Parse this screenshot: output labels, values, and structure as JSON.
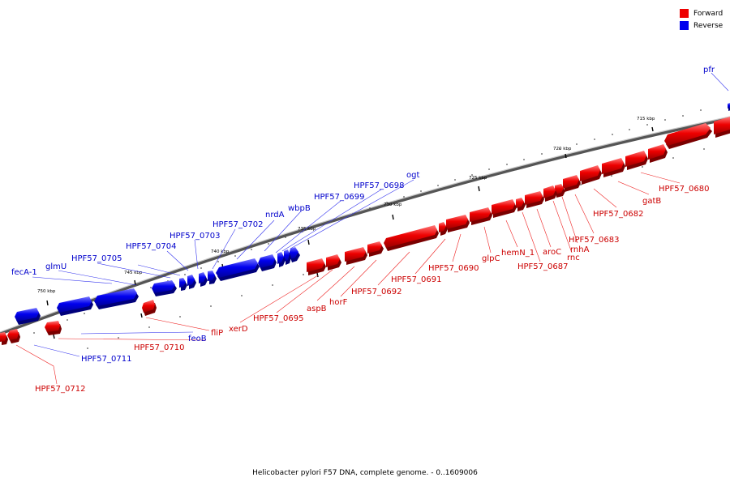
{
  "caption": "Helicobacter pylori F57 DNA, complete genome. - 0..1609006",
  "legend": [
    {
      "label": "Forward",
      "color": "#ee0000"
    },
    {
      "label": "Reverse",
      "color": "#0000ee"
    }
  ],
  "colors": {
    "forward": "#ee0000",
    "reverse": "#0000ee",
    "backbone": "#888888"
  },
  "scale": {
    "ticks": [
      "715 kbp",
      "720 kbp",
      "725 kbp",
      "730 kbp",
      "735 kbp",
      "740 kbp",
      "745 kbp",
      "750 kbp"
    ]
  },
  "genes": {
    "forward": [
      "HPF57_0680",
      "gatB",
      "HPF57_0682",
      "HPF57_0683",
      "rnhA",
      "rnc",
      "aroC",
      "HPF57_0687",
      "hemN_1",
      "glpC",
      "HPF57_0690",
      "HPF57_0691",
      "HPF57_0692",
      "horF",
      "aspB",
      "HPF57_0695",
      "xerD",
      "fliP",
      "HPF57_0710",
      "HPF57_0712"
    ],
    "reverse": [
      "pfr",
      "ogt",
      "HPF57_0698",
      "HPF57_0699",
      "wbpB",
      "nrdA",
      "HPF57_0702",
      "HPF57_0703",
      "HPF57_0704",
      "HPF57_0705",
      "glmU",
      "fecA-1",
      "feoB",
      "HPF57_0711"
    ]
  }
}
